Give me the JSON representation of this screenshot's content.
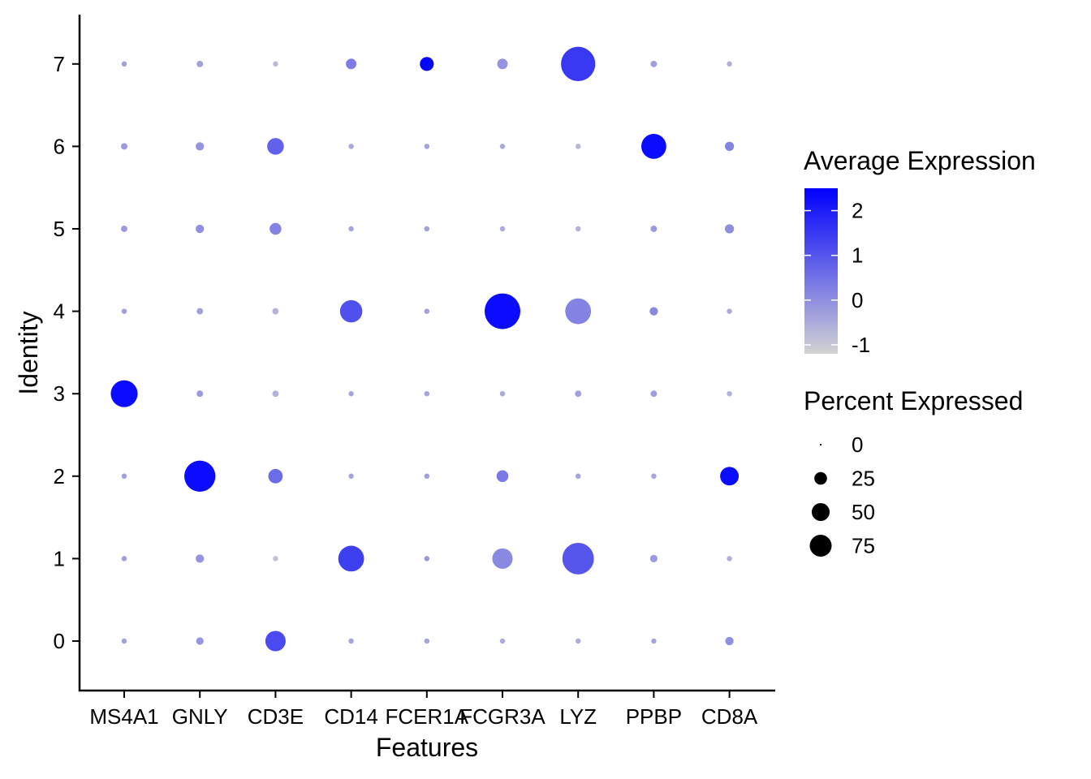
{
  "chart_data": {
    "type": "scatter",
    "subtype": "dot-plot",
    "xlabel": "Features",
    "ylabel": "Identity",
    "features": [
      "MS4A1",
      "GNLY",
      "CD3E",
      "CD14",
      "FCER1A",
      "FCGR3A",
      "LYZ",
      "PPBP",
      "CD8A"
    ],
    "identities": [
      "0",
      "1",
      "2",
      "3",
      "4",
      "5",
      "6",
      "7"
    ],
    "color_scale": {
      "low": "#d3d3d3",
      "high": "#0000ff",
      "min": -1.2,
      "max": 2.5
    },
    "size_scale": {
      "max_percent": 92,
      "max_radius": 22
    },
    "points": [
      {
        "feature": "MS4A1",
        "identity": "0",
        "pct": 2,
        "avg_exp": -0.3
      },
      {
        "feature": "GNLY",
        "identity": "0",
        "pct": 4,
        "avg_exp": -0.1
      },
      {
        "feature": "CD3E",
        "identity": "0",
        "pct": 30,
        "avg_exp": 1.2
      },
      {
        "feature": "CD14",
        "identity": "0",
        "pct": 2,
        "avg_exp": -0.4
      },
      {
        "feature": "FCER1A",
        "identity": "0",
        "pct": 2,
        "avg_exp": -0.4
      },
      {
        "feature": "FCGR3A",
        "identity": "0",
        "pct": 2,
        "avg_exp": -0.5
      },
      {
        "feature": "LYZ",
        "identity": "0",
        "pct": 2,
        "avg_exp": -0.5
      },
      {
        "feature": "PPBP",
        "identity": "0",
        "pct": 2,
        "avg_exp": -0.4
      },
      {
        "feature": "CD8A",
        "identity": "0",
        "pct": 5,
        "avg_exp": 0.0
      },
      {
        "feature": "MS4A1",
        "identity": "1",
        "pct": 2,
        "avg_exp": -0.3
      },
      {
        "feature": "GNLY",
        "identity": "1",
        "pct": 5,
        "avg_exp": -0.1
      },
      {
        "feature": "CD3E",
        "identity": "1",
        "pct": 2,
        "avg_exp": -0.9
      },
      {
        "feature": "CD14",
        "identity": "1",
        "pct": 48,
        "avg_exp": 1.4
      },
      {
        "feature": "FCER1A",
        "identity": "1",
        "pct": 2,
        "avg_exp": -0.2
      },
      {
        "feature": "FCGR3A",
        "identity": "1",
        "pct": 30,
        "avg_exp": 0.1
      },
      {
        "feature": "LYZ",
        "identity": "1",
        "pct": 72,
        "avg_exp": 1.0
      },
      {
        "feature": "PPBP",
        "identity": "1",
        "pct": 4,
        "avg_exp": -0.2
      },
      {
        "feature": "CD8A",
        "identity": "1",
        "pct": 2,
        "avg_exp": -0.6
      },
      {
        "feature": "MS4A1",
        "identity": "2",
        "pct": 2,
        "avg_exp": -0.3
      },
      {
        "feature": "GNLY",
        "identity": "2",
        "pct": 70,
        "avg_exp": 2.3
      },
      {
        "feature": "CD3E",
        "identity": "2",
        "pct": 15,
        "avg_exp": 0.6
      },
      {
        "feature": "CD14",
        "identity": "2",
        "pct": 2,
        "avg_exp": -0.4
      },
      {
        "feature": "FCER1A",
        "identity": "2",
        "pct": 2,
        "avg_exp": -0.3
      },
      {
        "feature": "FCGR3A",
        "identity": "2",
        "pct": 10,
        "avg_exp": 0.4
      },
      {
        "feature": "LYZ",
        "identity": "2",
        "pct": 2,
        "avg_exp": -0.4
      },
      {
        "feature": "PPBP",
        "identity": "2",
        "pct": 2,
        "avg_exp": -0.4
      },
      {
        "feature": "CD8A",
        "identity": "2",
        "pct": 25,
        "avg_exp": 2.3
      },
      {
        "feature": "MS4A1",
        "identity": "3",
        "pct": 52,
        "avg_exp": 2.3
      },
      {
        "feature": "GNLY",
        "identity": "3",
        "pct": 3,
        "avg_exp": -0.2
      },
      {
        "feature": "CD3E",
        "identity": "3",
        "pct": 3,
        "avg_exp": -0.6
      },
      {
        "feature": "CD14",
        "identity": "3",
        "pct": 2,
        "avg_exp": -0.4
      },
      {
        "feature": "FCER1A",
        "identity": "3",
        "pct": 2,
        "avg_exp": -0.4
      },
      {
        "feature": "FCGR3A",
        "identity": "3",
        "pct": 2,
        "avg_exp": -0.5
      },
      {
        "feature": "LYZ",
        "identity": "3",
        "pct": 3,
        "avg_exp": -0.3
      },
      {
        "feature": "PPBP",
        "identity": "3",
        "pct": 3,
        "avg_exp": -0.3
      },
      {
        "feature": "CD8A",
        "identity": "3",
        "pct": 2,
        "avg_exp": -0.6
      },
      {
        "feature": "MS4A1",
        "identity": "4",
        "pct": 2,
        "avg_exp": -0.3
      },
      {
        "feature": "GNLY",
        "identity": "4",
        "pct": 3,
        "avg_exp": -0.3
      },
      {
        "feature": "CD3E",
        "identity": "4",
        "pct": 3,
        "avg_exp": -0.7
      },
      {
        "feature": "CD14",
        "identity": "4",
        "pct": 36,
        "avg_exp": 1.1
      },
      {
        "feature": "FCER1A",
        "identity": "4",
        "pct": 2,
        "avg_exp": -0.3
      },
      {
        "feature": "FCGR3A",
        "identity": "4",
        "pct": 92,
        "avg_exp": 2.3
      },
      {
        "feature": "LYZ",
        "identity": "4",
        "pct": 48,
        "avg_exp": 0.2
      },
      {
        "feature": "PPBP",
        "identity": "4",
        "pct": 5,
        "avg_exp": 0.1
      },
      {
        "feature": "CD8A",
        "identity": "4",
        "pct": 2,
        "avg_exp": -0.5
      },
      {
        "feature": "MS4A1",
        "identity": "5",
        "pct": 3,
        "avg_exp": -0.2
      },
      {
        "feature": "GNLY",
        "identity": "5",
        "pct": 5,
        "avg_exp": 0.0
      },
      {
        "feature": "CD3E",
        "identity": "5",
        "pct": 10,
        "avg_exp": 0.2
      },
      {
        "feature": "CD14",
        "identity": "5",
        "pct": 2,
        "avg_exp": -0.4
      },
      {
        "feature": "FCER1A",
        "identity": "5",
        "pct": 2,
        "avg_exp": -0.3
      },
      {
        "feature": "FCGR3A",
        "identity": "5",
        "pct": 2,
        "avg_exp": -0.5
      },
      {
        "feature": "LYZ",
        "identity": "5",
        "pct": 2,
        "avg_exp": -0.6
      },
      {
        "feature": "PPBP",
        "identity": "5",
        "pct": 3,
        "avg_exp": -0.2
      },
      {
        "feature": "CD8A",
        "identity": "5",
        "pct": 6,
        "avg_exp": 0.0
      },
      {
        "feature": "MS4A1",
        "identity": "6",
        "pct": 3,
        "avg_exp": -0.2
      },
      {
        "feature": "GNLY",
        "identity": "6",
        "pct": 5,
        "avg_exp": -0.1
      },
      {
        "feature": "CD3E",
        "identity": "6",
        "pct": 20,
        "avg_exp": 0.8
      },
      {
        "feature": "CD14",
        "identity": "6",
        "pct": 2,
        "avg_exp": -0.5
      },
      {
        "feature": "FCER1A",
        "identity": "6",
        "pct": 2,
        "avg_exp": -0.4
      },
      {
        "feature": "FCGR3A",
        "identity": "6",
        "pct": 2,
        "avg_exp": -0.5
      },
      {
        "feature": "LYZ",
        "identity": "6",
        "pct": 2,
        "avg_exp": -0.7
      },
      {
        "feature": "PPBP",
        "identity": "6",
        "pct": 45,
        "avg_exp": 2.3
      },
      {
        "feature": "CD8A",
        "identity": "6",
        "pct": 6,
        "avg_exp": 0.2
      },
      {
        "feature": "MS4A1",
        "identity": "7",
        "pct": 2,
        "avg_exp": -0.3
      },
      {
        "feature": "GNLY",
        "identity": "7",
        "pct": 3,
        "avg_exp": -0.3
      },
      {
        "feature": "CD3E",
        "identity": "7",
        "pct": 2,
        "avg_exp": -0.8
      },
      {
        "feature": "CD14",
        "identity": "7",
        "pct": 8,
        "avg_exp": 0.3
      },
      {
        "feature": "FCER1A",
        "identity": "7",
        "pct": 14,
        "avg_exp": 2.4
      },
      {
        "feature": "FCGR3A",
        "identity": "7",
        "pct": 8,
        "avg_exp": -0.1
      },
      {
        "feature": "LYZ",
        "identity": "7",
        "pct": 85,
        "avg_exp": 1.5
      },
      {
        "feature": "PPBP",
        "identity": "7",
        "pct": 3,
        "avg_exp": -0.3
      },
      {
        "feature": "CD8A",
        "identity": "7",
        "pct": 2,
        "avg_exp": -0.6
      }
    ],
    "legend": {
      "color_title": "Average Expression",
      "color_ticks": [
        2,
        1,
        0,
        -1
      ],
      "size_title": "Percent Expressed",
      "size_ticks": [
        0,
        25,
        50,
        75
      ]
    }
  }
}
